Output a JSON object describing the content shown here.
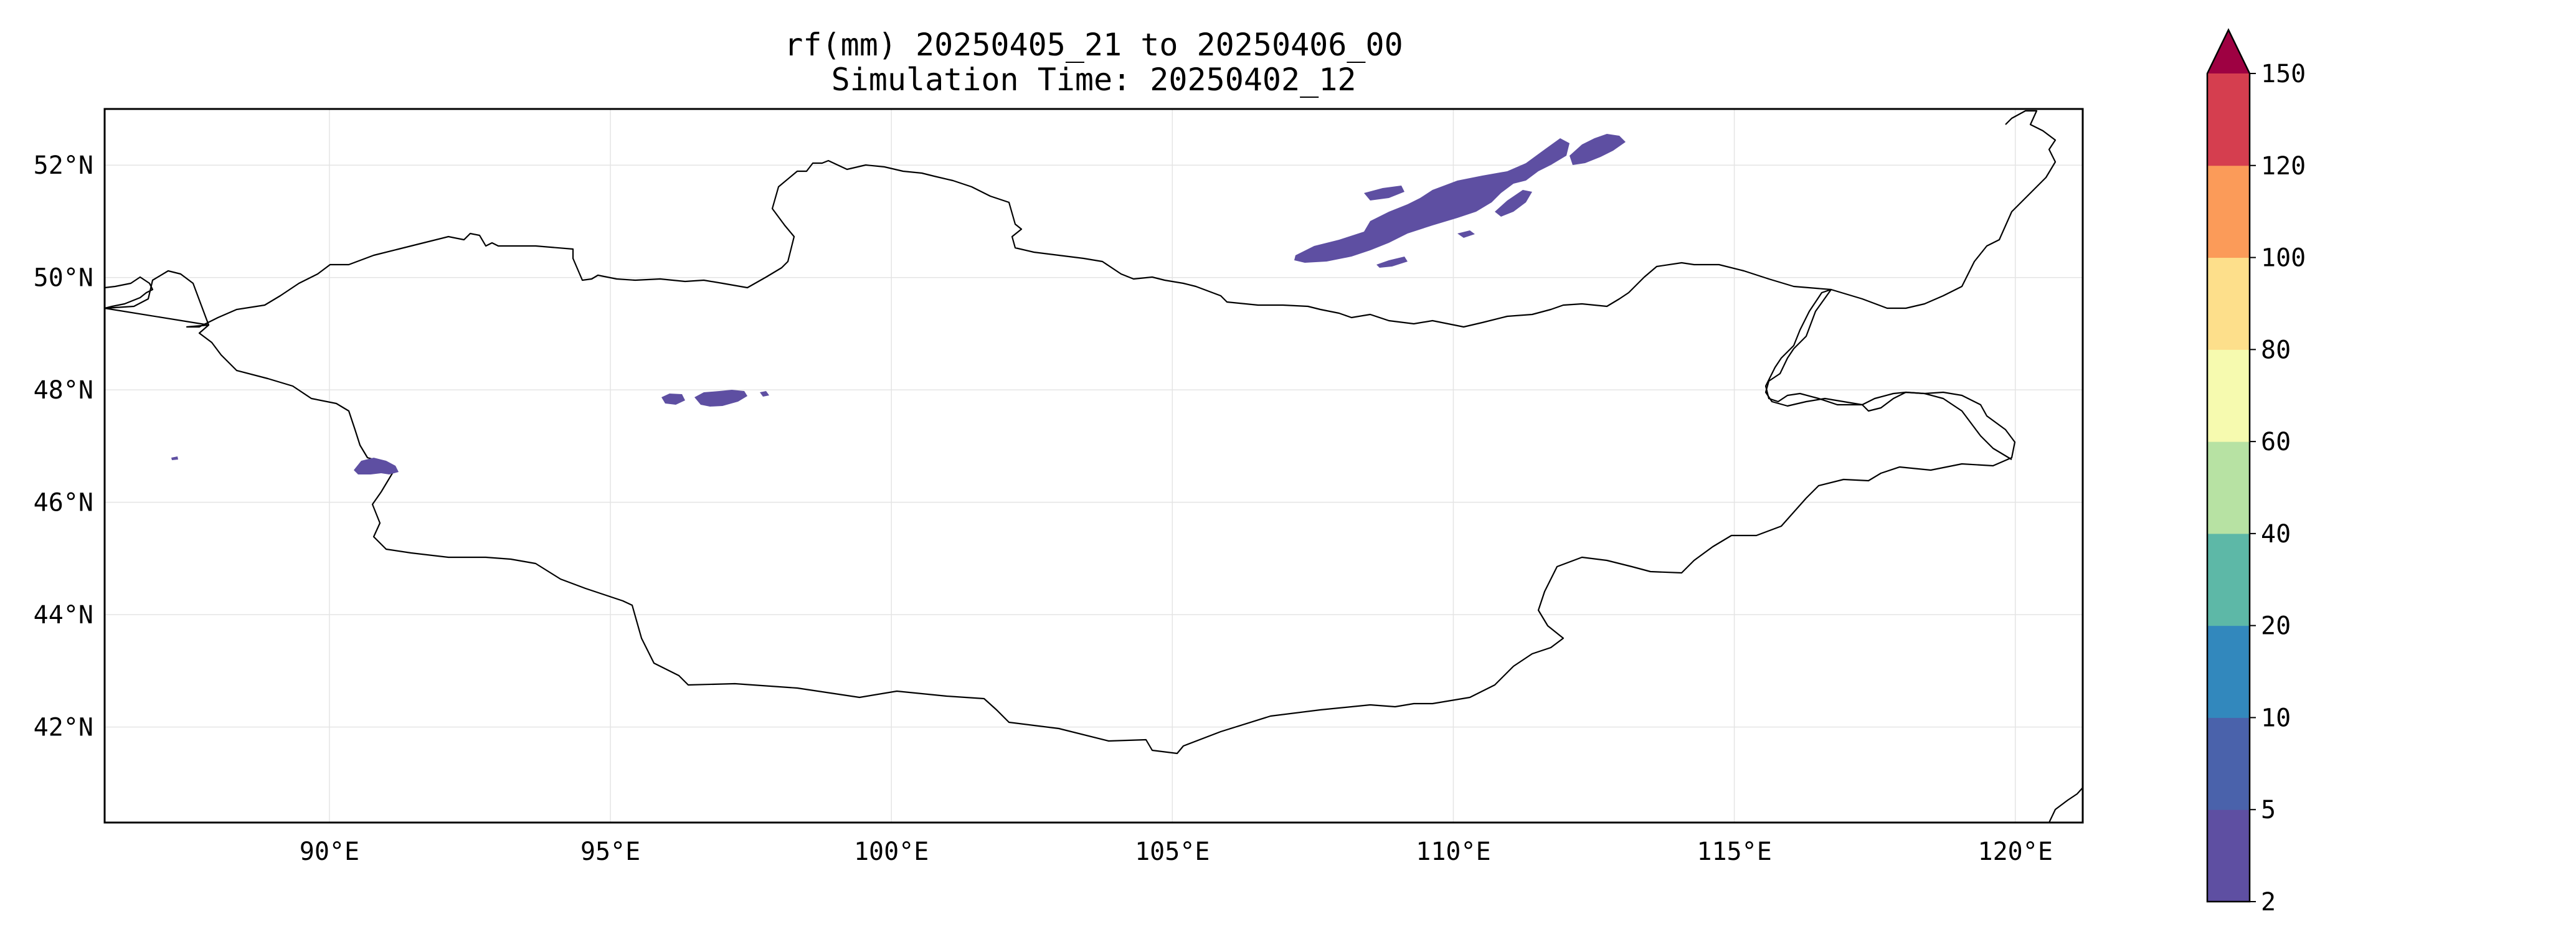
{
  "title_line1": "rf(mm) 20250405_21 to 20250406_00",
  "title_line2": "Simulation Time: 20250402_12",
  "map": {
    "extent": {
      "lon_min": 86.0,
      "lon_max": 121.2,
      "lat_min": 40.3,
      "lat_max": 53.0
    },
    "gridlines": true,
    "lon_ticks": [
      90,
      95,
      100,
      105,
      110,
      115,
      120
    ],
    "lon_labels": [
      "90°E",
      "95°E",
      "100°E",
      "105°E",
      "110°E",
      "115°E",
      "120°E"
    ],
    "lat_ticks": [
      42,
      44,
      46,
      48,
      50,
      52
    ],
    "lat_labels": [
      "42°N",
      "44°N",
      "46°N",
      "48°N",
      "50°N",
      "52°N"
    ],
    "precip_color": "#5e4fa2"
  },
  "colorbar": {
    "levels": [
      2,
      5,
      10,
      20,
      40,
      60,
      80,
      100,
      120,
      150
    ],
    "level_labels": [
      "2",
      "5",
      "10",
      "20",
      "40",
      "60",
      "80",
      "100",
      "120",
      "150"
    ],
    "colors": [
      "#5e4fa2",
      "#4a62ab",
      "#3288bd",
      "#5db8a7",
      "#b7e2a3",
      "#f6faaf",
      "#fddf8b",
      "#fb9b59",
      "#d53e4f"
    ],
    "extend_color": "#9e0142",
    "extend": "max"
  }
}
